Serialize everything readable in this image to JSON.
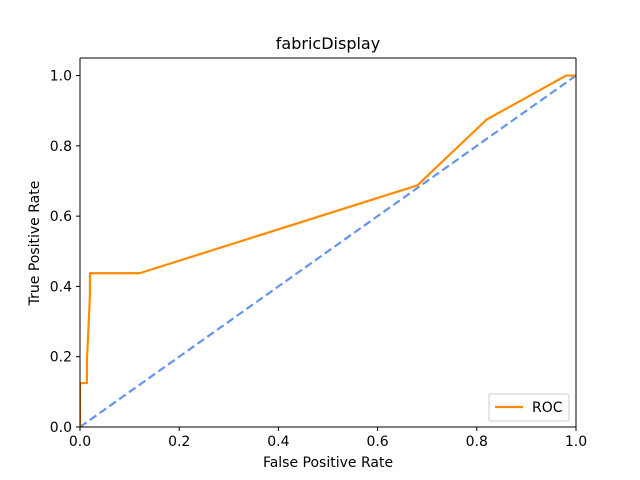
{
  "chart_data": {
    "type": "line",
    "title": "fabricDisplay",
    "xlabel": "False Positive Rate",
    "ylabel": "True Positive Rate",
    "xlim": [
      0,
      1
    ],
    "ylim": [
      0,
      1.05
    ],
    "xticks": [
      0.0,
      0.2,
      0.4,
      0.6,
      0.8,
      1.0
    ],
    "yticks": [
      0.0,
      0.2,
      0.4,
      0.6,
      0.8,
      1.0
    ],
    "xtick_labels": [
      "0.0",
      "0.2",
      "0.4",
      "0.6",
      "0.8",
      "1.0"
    ],
    "ytick_labels": [
      "0.0",
      "0.2",
      "0.4",
      "0.6",
      "0.8",
      "1.0"
    ],
    "grid": false,
    "legend_position": "lower right",
    "series": [
      {
        "name": "ROC",
        "color": "#ff8c00",
        "style": "solid",
        "x": [
          0.0,
          0.0,
          0.0,
          0.014,
          0.014,
          0.018,
          0.02,
          0.02,
          0.12,
          0.68,
          0.82,
          0.98,
          1.0
        ],
        "y": [
          0.0,
          0.0,
          0.125,
          0.125,
          0.19,
          0.31,
          0.375,
          0.4375,
          0.4375,
          0.6875,
          0.875,
          1.0,
          1.0
        ]
      },
      {
        "name": "",
        "color": "#6495ed",
        "style": "dashed",
        "x": [
          0.0,
          1.0
        ],
        "y": [
          0.0,
          1.0
        ]
      }
    ]
  }
}
